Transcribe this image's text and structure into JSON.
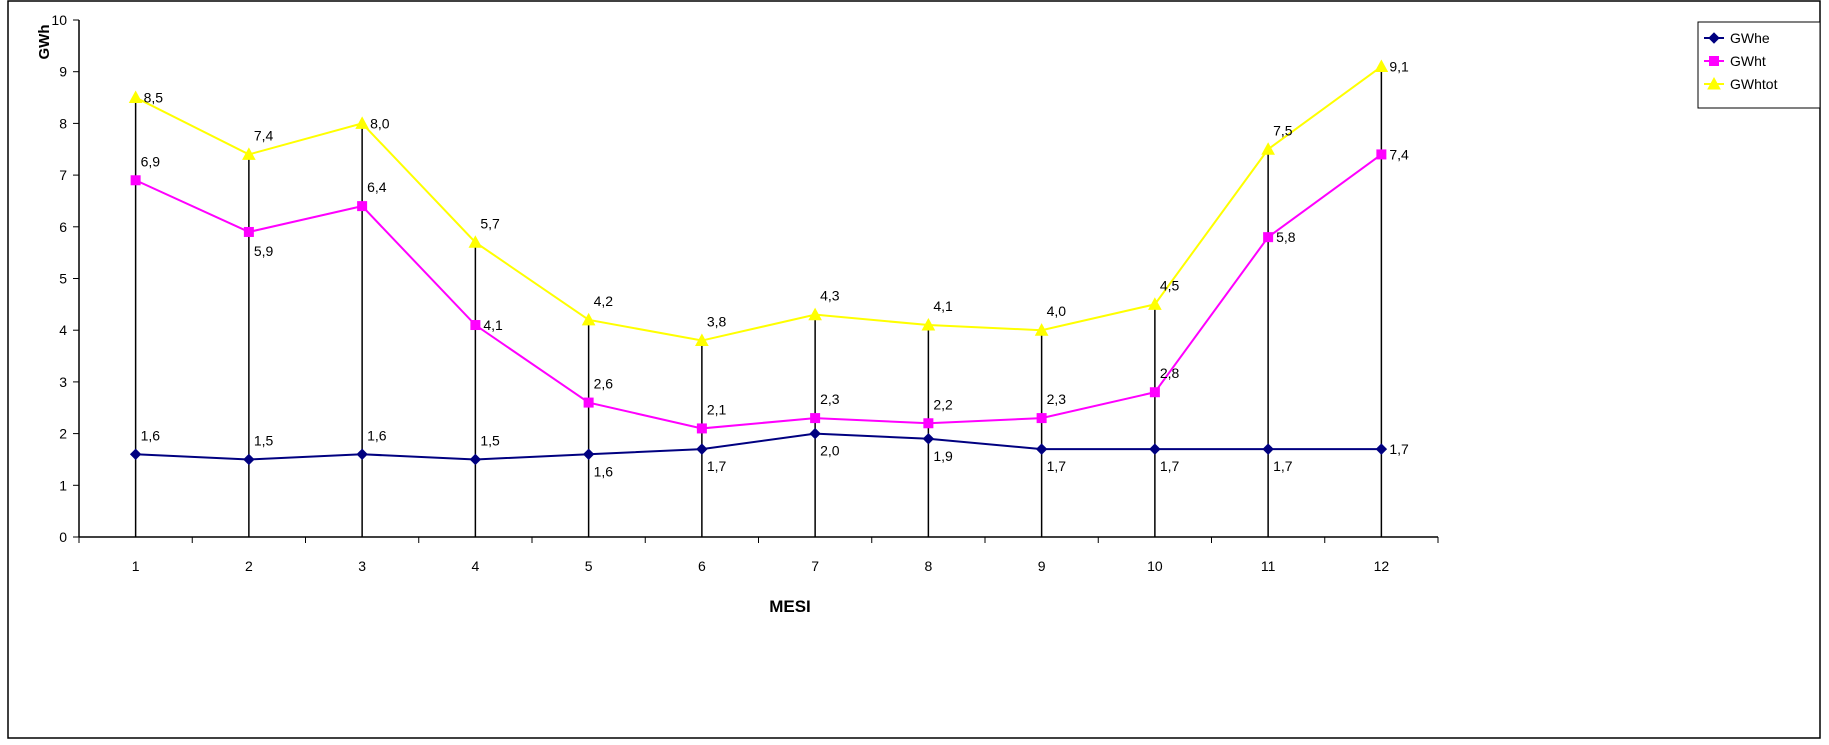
{
  "chart_data": {
    "type": "line",
    "xlabel": "MESI",
    "ylabel": "GWh",
    "ylim": [
      0,
      10
    ],
    "yticks": [
      "0",
      "1",
      "2",
      "3",
      "4",
      "5",
      "6",
      "7",
      "8",
      "9",
      "10"
    ],
    "categories": [
      "1",
      "2",
      "3",
      "4",
      "5",
      "6",
      "7",
      "8",
      "9",
      "10",
      "11",
      "12"
    ],
    "grid": false,
    "drop_lines": true,
    "legend_position": "right",
    "series": [
      {
        "name": "GWhe",
        "color": "#000080",
        "marker": "diamond",
        "values": [
          1.6,
          1.5,
          1.6,
          1.5,
          1.6,
          1.7,
          2.0,
          1.9,
          1.7,
          1.7,
          1.7,
          1.7
        ],
        "labels": [
          "1,6",
          "1,5",
          "1,6",
          "1,5",
          "1,6",
          "1,7",
          "2,0",
          "1,9",
          "1,7",
          "1,7",
          "1,7",
          "1,7"
        ]
      },
      {
        "name": "GWht",
        "color": "#ff00ff",
        "marker": "square",
        "values": [
          6.9,
          5.9,
          6.4,
          4.1,
          2.6,
          2.1,
          2.3,
          2.2,
          2.3,
          2.8,
          5.8,
          7.4
        ],
        "labels": [
          "6,9",
          "5,9",
          "6,4",
          "4,1",
          "2,6",
          "2,1",
          "2,3",
          "2,2",
          "2,3",
          "2,8",
          "5,8",
          "7,4"
        ]
      },
      {
        "name": "GWhtot",
        "color": "#ffff00",
        "marker": "triangle",
        "values": [
          8.5,
          7.4,
          8.0,
          5.7,
          4.2,
          3.8,
          4.3,
          4.1,
          4.0,
          4.5,
          7.5,
          9.1
        ],
        "labels": [
          "8,5",
          "7,4",
          "8,0",
          "5,7",
          "4,2",
          "3,8",
          "4,3",
          "4,1",
          "4,0",
          "4,5",
          "7,5",
          "9,1"
        ]
      }
    ]
  }
}
